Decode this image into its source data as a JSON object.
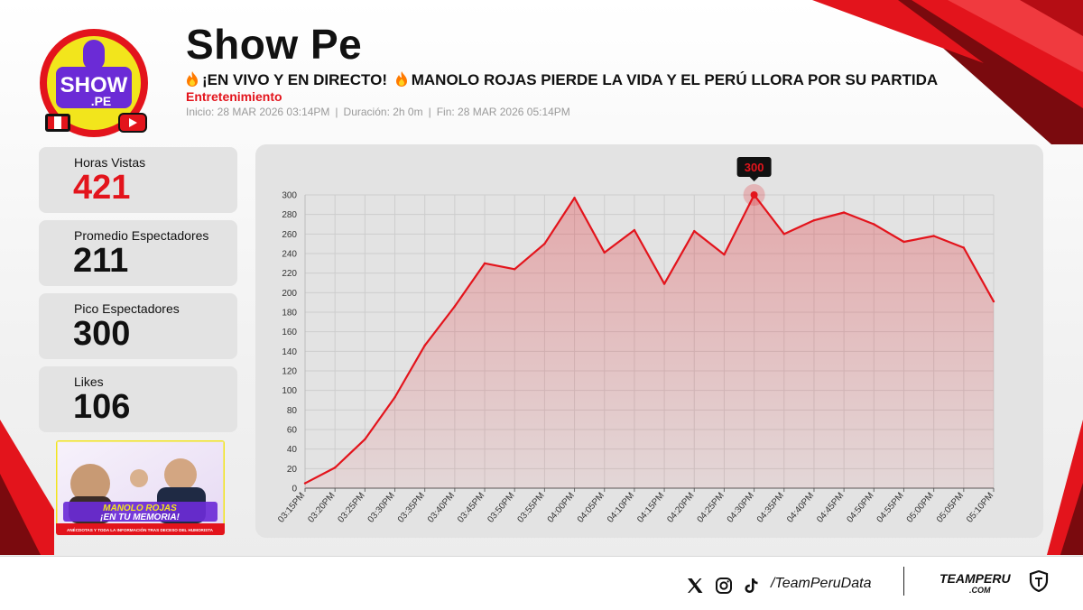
{
  "header": {
    "channel_name": "Show Pe",
    "title_part1": "¡EN VIVO Y EN DIRECTO!",
    "title_part2": "MANOLO ROJAS PIERDE LA VIDA Y EL PERÚ LLORA POR SU PARTIDA",
    "category": "Entretenimiento",
    "start": "Inicio: 28 MAR 2026 03:14PM",
    "duration": "Duración: 2h 0m",
    "end": "Fin: 28 MAR 2026 05:14PM",
    "separator": "|"
  },
  "logo": {
    "line1": "SHOW",
    "line2": ".PE"
  },
  "stats": [
    {
      "label": "Horas Vistas",
      "value": "421",
      "color": "#e3141c"
    },
    {
      "label": "Promedio Espectadores",
      "value": "211",
      "color": "#111111"
    },
    {
      "label": "Pico Espectadores",
      "value": "300",
      "color": "#111111"
    },
    {
      "label": "Likes",
      "value": "106",
      "color": "#111111"
    }
  ],
  "thumbnail": {
    "headline1": "MANOLO ROJAS",
    "headline2": "¡EN TU MEMORIA!",
    "caption": "ANÉCDOTAS Y TODA LA INFORMACIÓN TRAS DECESO DEL HUMORISTA"
  },
  "chart_data": {
    "type": "area",
    "title": "",
    "xlabel": "",
    "ylabel": "",
    "x": [
      "03:15PM",
      "03:20PM",
      "03:25PM",
      "03:30PM",
      "03:35PM",
      "03:40PM",
      "03:45PM",
      "03:50PM",
      "03:55PM",
      "04:00PM",
      "04:05PM",
      "04:10PM",
      "04:15PM",
      "04:20PM",
      "04:25PM",
      "04:30PM",
      "04:35PM",
      "04:40PM",
      "04:45PM",
      "04:50PM",
      "04:55PM",
      "05:00PM",
      "05:05PM",
      "05:10PM"
    ],
    "values": [
      5,
      21,
      50,
      93,
      146,
      186,
      230,
      224,
      250,
      297,
      241,
      264,
      209,
      263,
      239,
      300,
      260,
      274,
      282,
      270,
      252,
      258,
      246,
      191
    ],
    "ylim": [
      0,
      300
    ],
    "yticks": [
      0,
      20,
      40,
      60,
      80,
      100,
      120,
      140,
      160,
      180,
      200,
      220,
      240,
      260,
      280,
      300
    ],
    "grid": true,
    "peak_label": "300",
    "line_color": "#e3141c",
    "fill_color": "#e3141c"
  },
  "footer": {
    "handle": "/TeamPeruData",
    "brand": "TEAMPERU",
    "brand_sub": ".COM",
    "icons": [
      "x-icon",
      "instagram-icon",
      "tiktok-icon"
    ]
  },
  "colors": {
    "accent": "#e3141c",
    "dark_red": "#7a0a0e",
    "card": "#e3e3e3",
    "logo_yellow": "#f2e51c",
    "logo_purple": "#6b2bd6"
  }
}
